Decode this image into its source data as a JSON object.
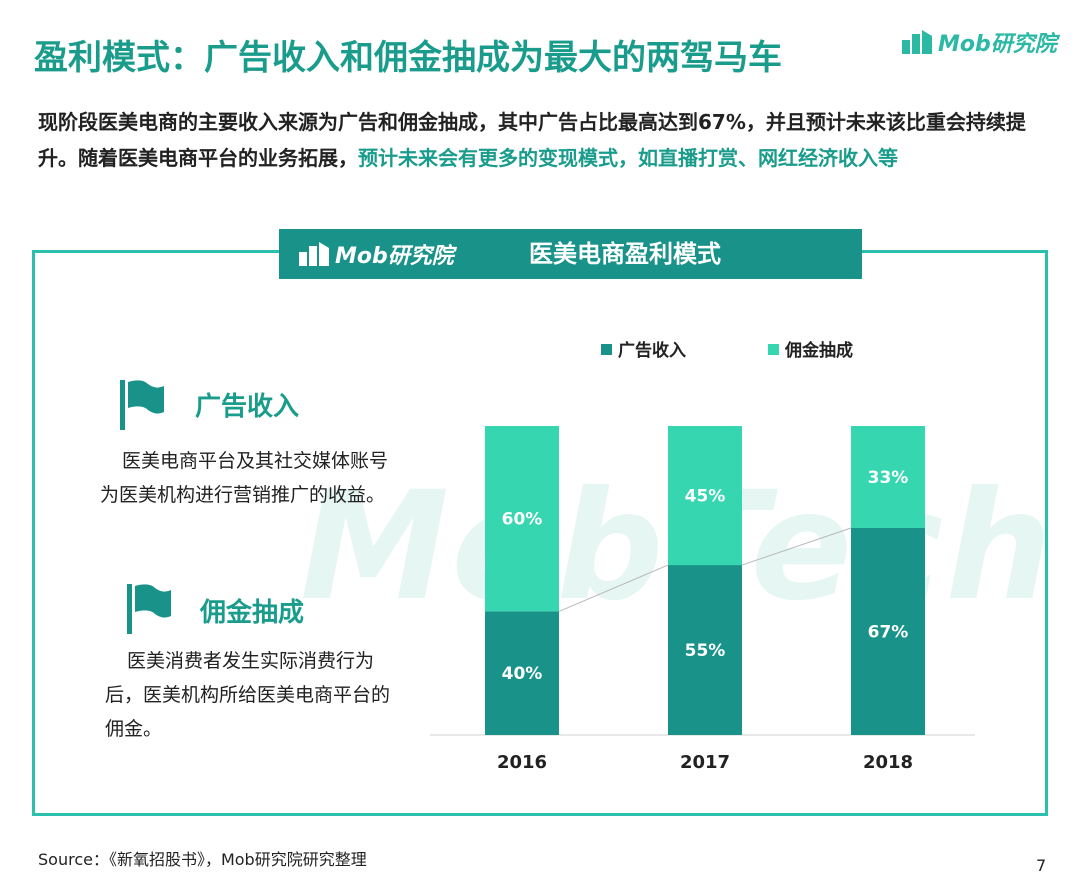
{
  "header": {
    "title": "盈利模式：广告收入和佣金抽成为最大的两驾马车",
    "brand": "Mob研究院"
  },
  "summary": {
    "part1": "现阶段医美电商的主要收入来源为广告和佣金抽成，其中广告占比最高达到67%，并且预计未来该比重会持续提升。随着医美电商平台的业务拓展，",
    "part2_highlight": "预计未来会有更多的变现模式，如直播打赏、网红经济收入等"
  },
  "panel": {
    "brand": "Mob研究院",
    "title": "医美电商盈利模式",
    "watermark": "MobTech"
  },
  "sections": [
    {
      "title": "广告收入",
      "description": "医美电商平台及其社交媒体账号为医美机构进行营销推广的收益。",
      "icon": "flag-icon"
    },
    {
      "title": "佣金抽成",
      "description": "医美消费者发生实际消费行为后，医美机构所给医美电商平台的佣金。",
      "icon": "flag-icon"
    }
  ],
  "chart_data": {
    "type": "bar",
    "stacked": true,
    "percent": true,
    "categories": [
      "2016",
      "2017",
      "2018"
    ],
    "series": [
      {
        "name": "广告收入",
        "values": [
          40,
          55,
          67
        ],
        "labels": [
          "40%",
          "55%",
          "67%"
        ],
        "color": "#19938a"
      },
      {
        "name": "佣金抽成",
        "values": [
          60,
          45,
          33
        ],
        "labels": [
          "60%",
          "45%",
          "33%"
        ],
        "color": "#35d6b0"
      }
    ],
    "ylim": [
      0,
      100
    ],
    "legend": "top",
    "grid": false,
    "title": "",
    "xlabel": "",
    "ylabel": ""
  },
  "footer": {
    "source": "Source：《新氧招股书》，Mob研究院研究整理",
    "page": "7"
  }
}
